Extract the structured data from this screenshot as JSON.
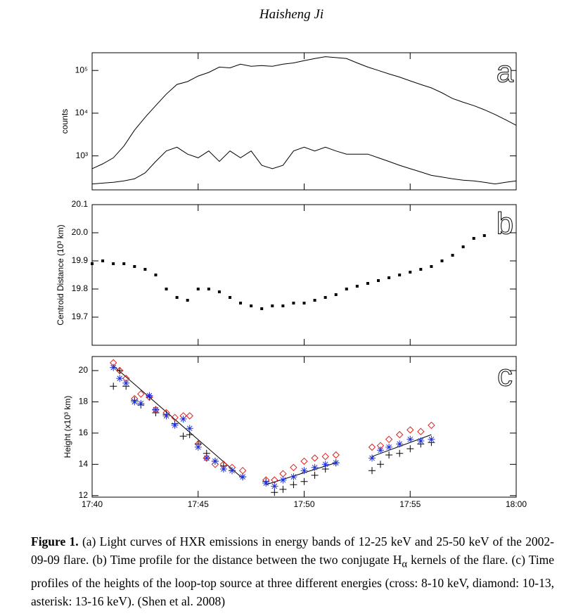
{
  "header": "Haisheng Ji",
  "chart_data": [
    {
      "type": "line",
      "panel_label": "a",
      "ylabel": "counts",
      "yscale": "log",
      "ylim": [
        160,
        260000
      ],
      "yticks": [
        {
          "value": 1000,
          "label": "10³"
        },
        {
          "value": 10000,
          "label": "10⁴"
        },
        {
          "value": 100000,
          "label": "10⁵"
        }
      ],
      "xlim": [
        0,
        20
      ],
      "xticks": [
        0,
        5,
        10,
        15,
        20
      ],
      "x": [
        0,
        0.5,
        1,
        1.5,
        2,
        2.5,
        3,
        3.5,
        4,
        4.5,
        5,
        5.5,
        6,
        6.5,
        7,
        7.5,
        8,
        8.5,
        9,
        9.5,
        10,
        10.5,
        11,
        11.5,
        12,
        12.5,
        13,
        13.5,
        14,
        14.5,
        15,
        15.5,
        16,
        16.5,
        17,
        17.5,
        18,
        18.5,
        19,
        19.5,
        20
      ],
      "series": [
        {
          "color": "#000000",
          "values": [
            500,
            650,
            900,
            1700,
            4000,
            8000,
            15000,
            28000,
            47000,
            55000,
            74000,
            90000,
            120000,
            115000,
            140000,
            125000,
            130000,
            125000,
            140000,
            150000,
            170000,
            190000,
            210000,
            200000,
            190000,
            150000,
            120000,
            100000,
            83000,
            70000,
            57000,
            47000,
            39000,
            30000,
            22000,
            18000,
            15000,
            12000,
            9300,
            7000,
            5200
          ]
        },
        {
          "color": "#000000",
          "values": [
            220,
            230,
            240,
            260,
            290,
            400,
            740,
            1300,
            1600,
            1100,
            900,
            1300,
            740,
            1300,
            900,
            1300,
            600,
            500,
            600,
            1300,
            1600,
            1300,
            1600,
            1300,
            1100,
            1100,
            1100,
            900,
            740,
            600,
            500,
            420,
            350,
            320,
            290,
            270,
            260,
            240,
            220,
            240,
            260
          ]
        }
      ]
    },
    {
      "type": "scatter",
      "panel_label": "b",
      "ylabel": "Centroid Distance (10³ km)",
      "ylim": [
        19.6,
        20.1
      ],
      "yticks": [
        19.7,
        19.8,
        19.9,
        {
          "value": 20.0,
          "label": "20.0"
        },
        20.1
      ],
      "xlim": [
        0,
        20
      ],
      "xticks": [
        0,
        5,
        10,
        15,
        20
      ],
      "color": "#000000",
      "x": [
        0,
        0.5,
        1,
        1.5,
        2,
        2.5,
        3,
        3.5,
        4,
        4.5,
        5,
        5.5,
        6,
        6.5,
        7,
        7.5,
        8,
        8.5,
        9,
        9.5,
        10,
        10.5,
        11,
        11.5,
        12,
        12.5,
        13,
        13.5,
        14,
        14.5,
        15,
        15.5,
        16,
        16.5,
        17,
        17.5,
        18,
        18.5
      ],
      "values": [
        19.89,
        19.9,
        19.89,
        19.89,
        19.88,
        19.87,
        19.85,
        19.8,
        19.77,
        19.76,
        19.8,
        19.8,
        19.79,
        19.77,
        19.75,
        19.74,
        19.73,
        19.74,
        19.74,
        19.75,
        19.75,
        19.76,
        19.77,
        19.78,
        19.8,
        19.81,
        19.82,
        19.83,
        19.84,
        19.85,
        19.86,
        19.87,
        19.88,
        19.9,
        19.92,
        19.95,
        19.98,
        19.99
      ]
    },
    {
      "type": "scatter",
      "panel_label": "c",
      "ylabel": "Height (x10³ km)",
      "ylim": [
        11.9,
        20.9
      ],
      "yticks": [
        12,
        14,
        16,
        18,
        20
      ],
      "xlim": [
        0,
        20
      ],
      "xticks": [
        {
          "value": 0,
          "label": "17:40"
        },
        {
          "value": 5,
          "label": "17:45"
        },
        {
          "value": 10,
          "label": "17:50"
        },
        {
          "value": 15,
          "label": "17:55"
        },
        {
          "value": 20,
          "label": "18:00"
        }
      ],
      "x": [
        1,
        1.3,
        1.6,
        2,
        2.3,
        2.7,
        3,
        3.5,
        3.9,
        4.3,
        4.6,
        5,
        5.4,
        5.8,
        6.2,
        6.6,
        7.1,
        8.2,
        8.6,
        9,
        9.5,
        10,
        10.5,
        11,
        11.5,
        13.2,
        13.6,
        14,
        14.5,
        15,
        15.5,
        16
      ],
      "series": [
        {
          "marker": "cross",
          "color": "#000000",
          "values": [
            19.0,
            20.0,
            19.0,
            18.1,
            17.8,
            18.3,
            17.3,
            17.2,
            16.6,
            15.8,
            15.9,
            15.3,
            14.7,
            14.2,
            13.9,
            13.6,
            13.2,
            12.9,
            12.2,
            12.4,
            12.7,
            12.9,
            13.3,
            13.7,
            14.1,
            13.6,
            14.0,
            14.6,
            14.7,
            15.0,
            15.3,
            15.4
          ]
        },
        {
          "marker": "diamond",
          "color": "#e0201c",
          "values": [
            20.5,
            20.0,
            19.5,
            18.2,
            18.5,
            18.3,
            17.5,
            17.3,
            17.0,
            17.1,
            17.1,
            15.3,
            14.4,
            14.0,
            14.0,
            13.8,
            13.6,
            13.0,
            13.0,
            13.4,
            13.8,
            14.2,
            14.4,
            14.5,
            14.6,
            15.1,
            15.2,
            15.6,
            15.9,
            16.2,
            16.1,
            16.5
          ]
        },
        {
          "marker": "asterisk",
          "color": "#2030e0",
          "values": [
            20.2,
            19.5,
            19.2,
            18.0,
            17.9,
            18.4,
            17.5,
            17.1,
            16.5,
            16.9,
            16.3,
            15.1,
            14.4,
            14.2,
            13.7,
            13.6,
            13.2,
            12.8,
            12.6,
            13.0,
            13.2,
            13.6,
            13.8,
            14.0,
            14.1,
            14.4,
            14.9,
            15.1,
            15.3,
            15.6,
            15.5,
            15.6
          ]
        }
      ],
      "fit_lines": [
        {
          "x": [
            1.0,
            7.1
          ],
          "values": [
            20.3,
            13.1
          ]
        },
        {
          "x": [
            8.2,
            11.5
          ],
          "values": [
            12.7,
            14.1
          ]
        },
        {
          "x": [
            13.2,
            16.0
          ],
          "values": [
            14.5,
            15.9
          ]
        }
      ]
    }
  ],
  "caption": {
    "label": "Figure 1.",
    "text_1": "(a) Light curves of HXR emissions in energy bands of 12-25 keV and 25-50 keV of the 2002-09-09 flare. (b) Time profile for the distance between the two conjugate H",
    "subscript": "α",
    "text_2": " kernels of the flare. (c) Time profiles of the heights of the loop-top source at three different energies (cross: 8-10 keV, diamond: 10-13, asterisk: 13-16 keV). (Shen et al. 2008)"
  }
}
